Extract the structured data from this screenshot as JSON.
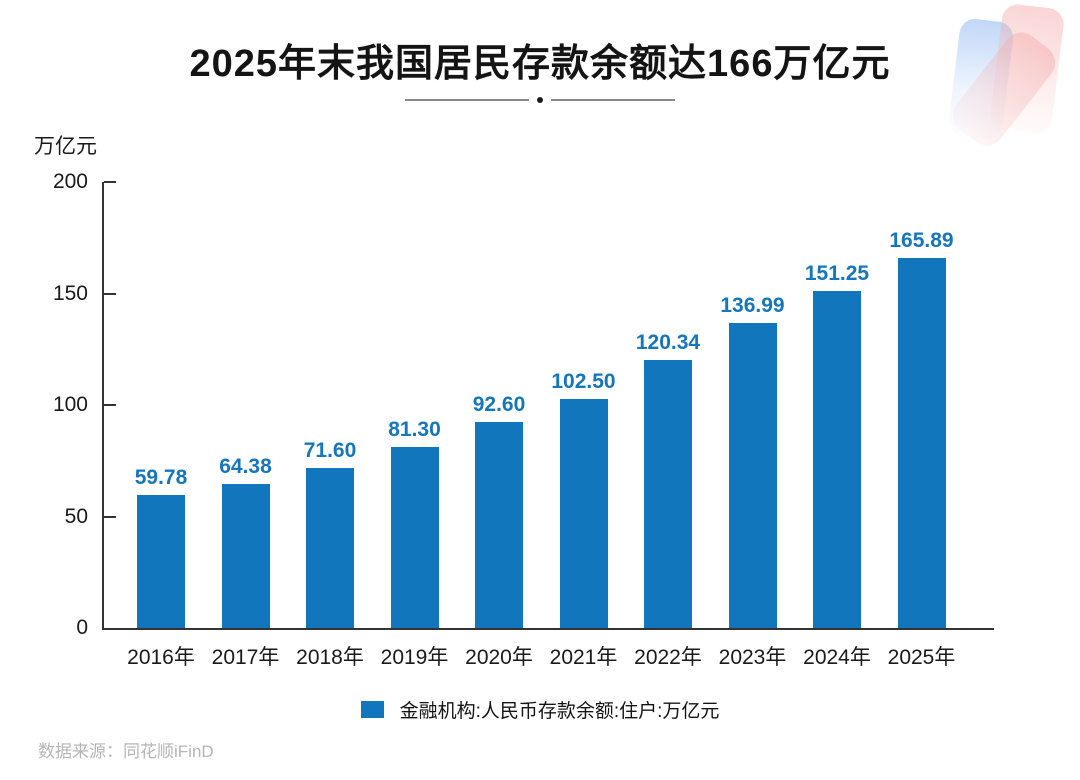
{
  "title": "2025年末我国居民存款余额达166万亿元",
  "unit_label": "万亿元",
  "legend": {
    "label": "金融机构:人民币存款余额:住户:万亿元"
  },
  "footer": {
    "source": "数据来源：同花顺iFinD"
  },
  "colors": {
    "bar": "#1276bd",
    "vlabel": "#1576bb",
    "axis": "#333333"
  },
  "chart_data": {
    "type": "bar",
    "title": "2025年末我国居民存款余额达166万亿元",
    "categories": [
      "2016年",
      "2017年",
      "2018年",
      "2019年",
      "2020年",
      "2021年",
      "2022年",
      "2023年",
      "2024年",
      "2025年"
    ],
    "values": [
      59.78,
      64.38,
      71.6,
      81.3,
      92.6,
      102.5,
      120.34,
      136.99,
      151.25,
      165.89
    ],
    "value_labels": [
      "59.78",
      "64.38",
      "71.60",
      "81.30",
      "92.60",
      "102.50",
      "120.34",
      "136.99",
      "151.25",
      "165.89"
    ],
    "series_name": "金融机构:人民币存款余额:住户:万亿元",
    "xlabel": "",
    "ylabel": "万亿元",
    "ylim": [
      0,
      200
    ],
    "yticks": [
      0,
      50,
      100,
      150,
      200
    ],
    "grid": false,
    "legend_position": "bottom",
    "source": "数据来源：同花顺iFinD"
  }
}
